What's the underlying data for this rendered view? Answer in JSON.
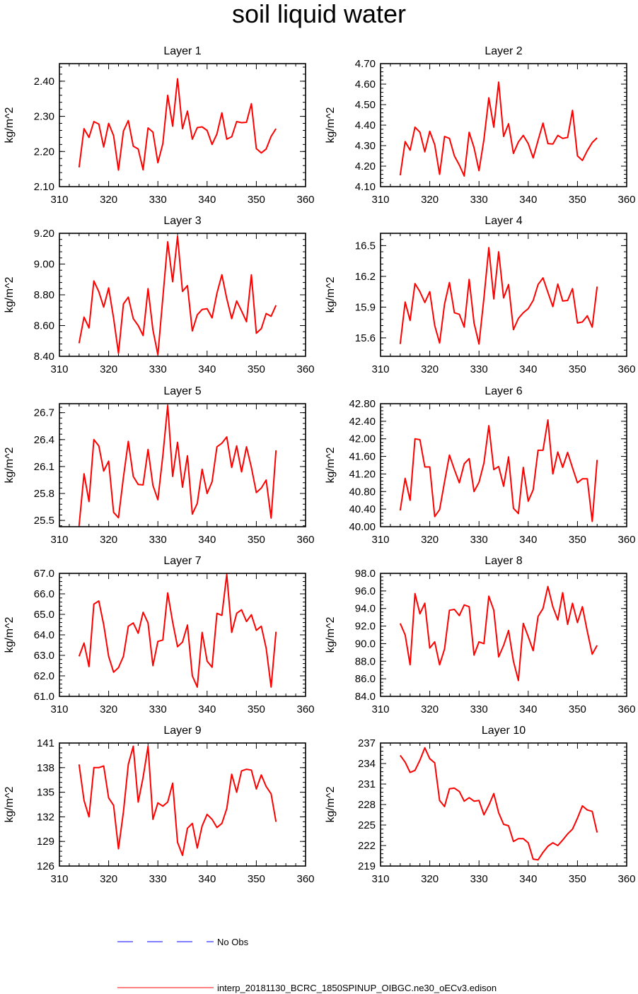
{
  "title": "soil liquid water",
  "line_colors": {
    "model": "#ff0000",
    "obs": "#0000ff"
  },
  "legend": {
    "obs_label": "No Obs",
    "model_label": "interp_20181130_BCRC_1850SPINUP_OIBGC.ne30_oECv3.edison"
  },
  "chart_data": [
    {
      "type": "line",
      "title": "Layer 1",
      "ylabel": "kg/m^2",
      "xlim": [
        310,
        360
      ],
      "ylim": [
        2.1,
        2.45
      ],
      "xticks": [
        310,
        320,
        330,
        340,
        350,
        360
      ],
      "yticks": [
        "2.10",
        "2.20",
        "2.30",
        "2.40"
      ],
      "x": [
        314,
        315,
        316,
        317,
        318,
        319,
        320,
        321,
        322,
        323,
        324,
        325,
        326,
        327,
        328,
        329,
        330,
        331,
        332,
        333,
        334,
        335,
        336,
        337,
        338,
        339,
        340,
        341,
        342,
        343,
        344,
        345,
        346,
        347,
        348,
        349,
        350,
        351,
        352,
        353,
        354
      ],
      "values": [
        2.155,
        2.265,
        2.24,
        2.285,
        2.278,
        2.213,
        2.28,
        2.245,
        2.147,
        2.258,
        2.288,
        2.215,
        2.207,
        2.148,
        2.267,
        2.255,
        2.168,
        2.222,
        2.36,
        2.272,
        2.407,
        2.265,
        2.315,
        2.235,
        2.268,
        2.27,
        2.26,
        2.22,
        2.25,
        2.31,
        2.235,
        2.242,
        2.285,
        2.282,
        2.283,
        2.336,
        2.208,
        2.196,
        2.207,
        2.243,
        2.265
      ]
    },
    {
      "type": "line",
      "title": "Layer 2",
      "ylabel": "kg/m^2",
      "xlim": [
        310,
        360
      ],
      "ylim": [
        4.1,
        4.7
      ],
      "xticks": [
        310,
        320,
        330,
        340,
        350,
        360
      ],
      "yticks": [
        "4.10",
        "4.20",
        "4.30",
        "4.40",
        "4.50",
        "4.60",
        "4.70"
      ],
      "x": [
        314,
        315,
        316,
        317,
        318,
        319,
        320,
        321,
        322,
        323,
        324,
        325,
        326,
        327,
        328,
        329,
        330,
        331,
        332,
        333,
        334,
        335,
        336,
        337,
        338,
        339,
        340,
        341,
        342,
        343,
        344,
        345,
        346,
        347,
        348,
        349,
        350,
        351,
        352,
        353,
        354
      ],
      "values": [
        4.155,
        4.32,
        4.278,
        4.39,
        4.365,
        4.27,
        4.37,
        4.305,
        4.16,
        4.345,
        4.335,
        4.25,
        4.205,
        4.152,
        4.365,
        4.29,
        4.178,
        4.33,
        4.533,
        4.39,
        4.61,
        4.345,
        4.407,
        4.262,
        4.318,
        4.35,
        4.31,
        4.24,
        4.325,
        4.41,
        4.31,
        4.308,
        4.35,
        4.335,
        4.34,
        4.472,
        4.25,
        4.228,
        4.275,
        4.315,
        4.338
      ]
    },
    {
      "type": "line",
      "title": "Layer 3",
      "ylabel": "kg/m^2",
      "xlim": [
        310,
        360
      ],
      "ylim": [
        8.4,
        9.2
      ],
      "xticks": [
        310,
        320,
        330,
        340,
        350,
        360
      ],
      "yticks": [
        "8.40",
        "8.60",
        "8.80",
        "9.00",
        "9.20"
      ],
      "x": [
        314,
        315,
        316,
        317,
        318,
        319,
        320,
        321,
        322,
        323,
        324,
        325,
        326,
        327,
        328,
        329,
        330,
        331,
        332,
        333,
        334,
        335,
        336,
        337,
        338,
        339,
        340,
        341,
        342,
        343,
        344,
        345,
        346,
        347,
        348,
        349,
        350,
        351,
        352,
        353,
        354
      ],
      "values": [
        8.485,
        8.655,
        8.585,
        8.89,
        8.82,
        8.72,
        8.845,
        8.648,
        8.42,
        8.74,
        8.785,
        8.645,
        8.6,
        8.535,
        8.84,
        8.572,
        8.41,
        8.78,
        9.145,
        8.885,
        9.18,
        8.822,
        8.86,
        8.565,
        8.67,
        8.705,
        8.71,
        8.65,
        8.81,
        8.93,
        8.775,
        8.645,
        8.76,
        8.695,
        8.625,
        8.93,
        8.55,
        8.58,
        8.678,
        8.66,
        8.732
      ]
    },
    {
      "type": "line",
      "title": "Layer 4",
      "ylabel": "kg/m^2",
      "xlim": [
        310,
        360
      ],
      "ylim": [
        15.42,
        16.62
      ],
      "xticks": [
        310,
        320,
        330,
        340,
        350,
        360
      ],
      "yticks": [
        "15.6",
        "15.9",
        "16.2",
        "16.5"
      ],
      "x": [
        314,
        315,
        316,
        317,
        318,
        319,
        320,
        321,
        322,
        323,
        324,
        325,
        326,
        327,
        328,
        329,
        330,
        331,
        332,
        333,
        334,
        335,
        336,
        337,
        338,
        339,
        340,
        341,
        342,
        343,
        344,
        345,
        346,
        347,
        348,
        349,
        350,
        351,
        352,
        353,
        354
      ],
      "values": [
        15.54,
        15.95,
        15.77,
        16.13,
        16.05,
        15.945,
        16.05,
        15.72,
        15.55,
        15.93,
        16.14,
        15.845,
        15.83,
        15.705,
        16.17,
        15.745,
        15.54,
        15.99,
        16.48,
        15.98,
        16.44,
        15.99,
        16.12,
        15.68,
        15.79,
        15.845,
        15.885,
        15.965,
        16.12,
        16.185,
        16.045,
        15.905,
        16.125,
        15.96,
        15.965,
        16.08,
        15.745,
        15.755,
        15.815,
        15.705,
        16.1
      ]
    },
    {
      "type": "line",
      "title": "Layer 5",
      "ylabel": "kg/m^2",
      "xlim": [
        310,
        360
      ],
      "ylim": [
        25.43,
        26.8
      ],
      "xticks": [
        310,
        320,
        330,
        340,
        350,
        360
      ],
      "yticks": [
        "25.5",
        "25.8",
        "26.1",
        "26.4",
        "26.7"
      ],
      "x": [
        314,
        315,
        316,
        317,
        318,
        319,
        320,
        321,
        322,
        323,
        324,
        325,
        326,
        327,
        328,
        329,
        330,
        331,
        332,
        333,
        334,
        335,
        336,
        337,
        338,
        339,
        340,
        341,
        342,
        343,
        344,
        345,
        346,
        347,
        348,
        349,
        350,
        351,
        352,
        353,
        354
      ],
      "values": [
        25.44,
        26.02,
        25.71,
        26.4,
        26.33,
        26.05,
        26.16,
        25.59,
        25.53,
        25.98,
        26.38,
        25.99,
        25.9,
        25.895,
        26.29,
        25.89,
        25.73,
        26.22,
        26.78,
        25.99,
        26.37,
        25.87,
        26.22,
        25.57,
        25.69,
        26.07,
        25.8,
        25.93,
        26.32,
        26.36,
        26.43,
        26.09,
        26.33,
        26.04,
        26.32,
        26.09,
        25.81,
        25.86,
        25.95,
        25.525,
        26.28
      ]
    },
    {
      "type": "line",
      "title": "Layer 6",
      "ylabel": "kg/m^2",
      "xlim": [
        310,
        360
      ],
      "ylim": [
        40.0,
        42.8
      ],
      "xticks": [
        310,
        320,
        330,
        340,
        350,
        360
      ],
      "yticks": [
        "40.00",
        "40.40",
        "40.80",
        "41.20",
        "41.60",
        "42.00",
        "42.40",
        "42.80"
      ],
      "x": [
        314,
        315,
        316,
        317,
        318,
        319,
        320,
        321,
        322,
        323,
        324,
        325,
        326,
        327,
        328,
        329,
        330,
        331,
        332,
        333,
        334,
        335,
        336,
        337,
        338,
        339,
        340,
        341,
        342,
        343,
        344,
        345,
        346,
        347,
        348,
        349,
        350,
        351,
        352,
        353,
        354
      ],
      "values": [
        40.37,
        41.1,
        40.6,
        42.0,
        41.98,
        41.36,
        41.36,
        40.23,
        40.39,
        41.02,
        41.63,
        41.3,
        41.0,
        41.43,
        41.55,
        40.8,
        41.01,
        41.45,
        42.3,
        41.3,
        41.37,
        40.92,
        41.59,
        40.42,
        40.3,
        41.35,
        40.58,
        40.84,
        41.74,
        41.74,
        42.43,
        41.2,
        41.7,
        41.35,
        41.69,
        41.34,
        41.0,
        41.09,
        41.09,
        40.12,
        41.52
      ]
    },
    {
      "type": "line",
      "title": "Layer 7",
      "ylabel": "kg/m^2",
      "xlim": [
        310,
        360
      ],
      "ylim": [
        61.0,
        67.0
      ],
      "xticks": [
        310,
        320,
        330,
        340,
        350,
        360
      ],
      "yticks": [
        "61.0",
        "62.0",
        "63.0",
        "64.0",
        "65.0",
        "66.0",
        "67.0"
      ],
      "x": [
        314,
        315,
        316,
        317,
        318,
        319,
        320,
        321,
        322,
        323,
        324,
        325,
        326,
        327,
        328,
        329,
        330,
        331,
        332,
        333,
        334,
        335,
        336,
        337,
        338,
        339,
        340,
        341,
        342,
        343,
        344,
        345,
        346,
        347,
        348,
        349,
        350,
        351,
        352,
        353,
        354
      ],
      "values": [
        62.95,
        63.6,
        62.45,
        65.5,
        65.65,
        64.5,
        62.95,
        62.18,
        62.4,
        62.95,
        64.42,
        64.58,
        64.08,
        65.1,
        64.58,
        62.5,
        63.68,
        63.75,
        66.05,
        64.62,
        63.42,
        63.65,
        64.48,
        62.0,
        61.45,
        64.12,
        62.72,
        62.42,
        65.05,
        64.95,
        66.95,
        64.12,
        65.05,
        65.22,
        64.65,
        64.98,
        64.22,
        64.42,
        63.35,
        61.45,
        64.15
      ]
    },
    {
      "type": "line",
      "title": "Layer 8",
      "ylabel": "kg/m^2",
      "xlim": [
        310,
        360
      ],
      "ylim": [
        84.0,
        98.0
      ],
      "xticks": [
        310,
        320,
        330,
        340,
        350,
        360
      ],
      "yticks": [
        "84.0",
        "86.0",
        "88.0",
        "90.0",
        "92.0",
        "94.0",
        "96.0",
        "98.0"
      ],
      "x": [
        314,
        315,
        316,
        317,
        318,
        319,
        320,
        321,
        322,
        323,
        324,
        325,
        326,
        327,
        328,
        329,
        330,
        331,
        332,
        333,
        334,
        335,
        336,
        337,
        338,
        339,
        340,
        341,
        342,
        343,
        344,
        345,
        346,
        347,
        348,
        349,
        350,
        351,
        352,
        353,
        354
      ],
      "values": [
        92.3,
        91.0,
        87.6,
        95.7,
        93.4,
        94.6,
        89.5,
        90.2,
        87.6,
        89.4,
        93.8,
        93.9,
        93.2,
        94.4,
        94.2,
        88.7,
        90.2,
        90.0,
        95.4,
        93.8,
        88.5,
        89.8,
        91.5,
        88.0,
        85.8,
        92.3,
        90.8,
        89.2,
        93.1,
        94.0,
        96.5,
        94.2,
        92.7,
        95.8,
        92.2,
        94.6,
        92.4,
        94.2,
        91.4,
        88.8,
        89.8
      ]
    },
    {
      "type": "line",
      "title": "Layer 9",
      "ylabel": "kg/m^2",
      "xlim": [
        310,
        360
      ],
      "ylim": [
        126,
        141
      ],
      "xticks": [
        310,
        320,
        330,
        340,
        350,
        360
      ],
      "yticks": [
        "126",
        "129",
        "132",
        "135",
        "138",
        "141"
      ],
      "x": [
        314,
        315,
        316,
        317,
        318,
        319,
        320,
        321,
        322,
        323,
        324,
        325,
        326,
        327,
        328,
        329,
        330,
        331,
        332,
        333,
        334,
        335,
        336,
        337,
        338,
        339,
        340,
        341,
        342,
        343,
        344,
        345,
        346,
        347,
        348,
        349,
        350,
        351,
        352,
        353,
        354
      ],
      "values": [
        138.4,
        134.0,
        132.0,
        138.0,
        138.0,
        138.2,
        134.3,
        133.4,
        128.1,
        132.6,
        138.4,
        140.6,
        133.8,
        136.8,
        140.6,
        131.7,
        133.7,
        133.3,
        133.8,
        136.1,
        128.9,
        127.3,
        130.6,
        131.2,
        128.2,
        130.9,
        132.3,
        131.7,
        130.7,
        131.2,
        133.0,
        137.2,
        135.0,
        137.6,
        137.8,
        137.7,
        135.4,
        137.1,
        135.7,
        134.8,
        131.4
      ]
    },
    {
      "type": "line",
      "title": "Layer 10",
      "ylabel": "kg/m^2",
      "xlim": [
        310,
        360
      ],
      "ylim": [
        219,
        237
      ],
      "xticks": [
        310,
        320,
        330,
        340,
        350,
        360
      ],
      "yticks": [
        "219",
        "222",
        "225",
        "228",
        "231",
        "234",
        "237"
      ],
      "x": [
        314,
        315,
        316,
        317,
        318,
        319,
        320,
        321,
        322,
        323,
        324,
        325,
        326,
        327,
        328,
        329,
        330,
        331,
        332,
        333,
        334,
        335,
        336,
        337,
        338,
        339,
        340,
        341,
        342,
        343,
        344,
        345,
        346,
        347,
        348,
        349,
        350,
        351,
        352,
        353,
        354
      ],
      "values": [
        235.2,
        234.2,
        232.7,
        233.0,
        234.5,
        236.3,
        234.7,
        234.1,
        228.6,
        227.7,
        230.3,
        230.4,
        229.9,
        228.5,
        229.0,
        228.5,
        228.6,
        226.5,
        227.9,
        229.6,
        226.8,
        225.1,
        224.9,
        222.6,
        223.0,
        223.0,
        222.4,
        220.0,
        219.9,
        221.0,
        221.9,
        222.4,
        222.0,
        222.8,
        223.7,
        224.4,
        226.0,
        227.8,
        227.2,
        227.0,
        223.9
      ]
    }
  ]
}
